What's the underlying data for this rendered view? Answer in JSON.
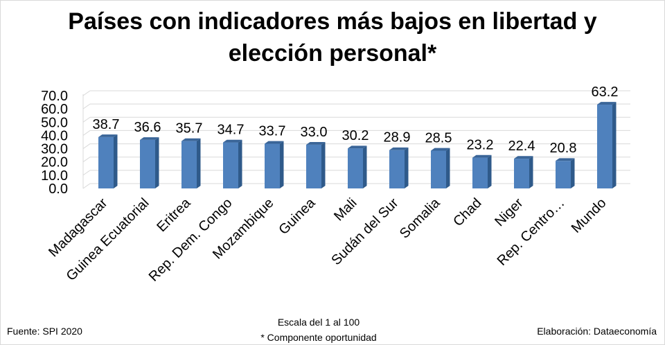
{
  "title_line1": "Países con indicadores más bajos en libertad y",
  "title_line2": "elección personal*",
  "footer": {
    "source": "Fuente: SPI 2020",
    "scale": "Escala del 1 al 100",
    "note": "* Componente oportunidad",
    "credit": "Elaboración: Dataeconomía"
  },
  "colors": {
    "bar_front": "#4f81bd",
    "bar_side": "#2f5a8a",
    "bar_top": "#3a6598",
    "grid": "#d9d9d9"
  },
  "chart_data": {
    "type": "bar",
    "title": "Países con indicadores más bajos en libertad y elección personal*",
    "categories": [
      "Madagascar",
      "Guinea Ecuatorial",
      "Eritrea",
      "Rep. Dem. Congo",
      "Mozambique",
      "Guinea",
      "Mali",
      "Sudán del Sur",
      "Somalia",
      "Chad",
      "Niger",
      "Rep. Centro…",
      "Mundo"
    ],
    "values": [
      38.7,
      36.6,
      35.7,
      34.7,
      33.7,
      33.0,
      30.2,
      28.9,
      28.5,
      23.2,
      22.4,
      20.8,
      63.2
    ],
    "data_labels": [
      "38.7",
      "36.6",
      "35.7",
      "34.7",
      "33.7",
      "33.0",
      "30.2",
      "28.9",
      "28.5",
      "23.2",
      "22.4",
      "20.8",
      "63.2"
    ],
    "yticks": [
      "0.0",
      "10.0",
      "20.0",
      "30.0",
      "40.0",
      "50.0",
      "60.0",
      "70.0"
    ],
    "ylim": [
      0,
      70
    ],
    "grid": true,
    "legend": "none",
    "style": "3d-column"
  }
}
